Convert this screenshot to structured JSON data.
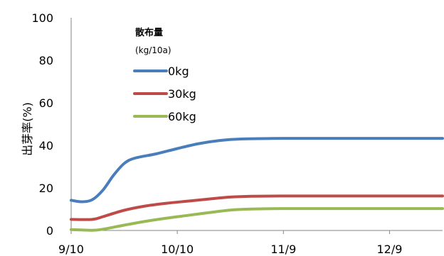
{
  "chart_data": {
    "type": "line",
    "title": "",
    "xlabel": "",
    "ylabel": "出芽率(%)",
    "ylim": [
      0,
      100
    ],
    "yticks": [
      0,
      20,
      40,
      60,
      80,
      100
    ],
    "x_ticks": [
      {
        "day": 0,
        "label": "9/10"
      },
      {
        "day": 30,
        "label": "10/10"
      },
      {
        "day": 60,
        "label": "11/9"
      },
      {
        "day": 90,
        "label": "12/9"
      }
    ],
    "xlim_days": [
      0,
      105
    ],
    "grid": false,
    "legend": {
      "title": "散布量",
      "subtitle": "(kg/10a)",
      "placement": "upper-left inside plot"
    },
    "series": [
      {
        "name": "0kg",
        "color": "#4a7ebb",
        "points": [
          [
            0,
            14.2
          ],
          [
            3,
            13.5
          ],
          [
            6,
            14.5
          ],
          [
            9,
            19
          ],
          [
            12,
            26
          ],
          [
            15,
            31.5
          ],
          [
            18,
            34
          ],
          [
            24,
            36
          ],
          [
            30,
            38.5
          ],
          [
            36,
            40.8
          ],
          [
            42,
            42.3
          ],
          [
            48,
            43
          ],
          [
            60,
            43.3
          ],
          [
            80,
            43.3
          ],
          [
            105,
            43.3
          ]
        ]
      },
      {
        "name": "30kg",
        "color": "#be4b48",
        "points": [
          [
            0,
            5.2
          ],
          [
            6,
            5.2
          ],
          [
            9,
            6.5
          ],
          [
            15,
            9.5
          ],
          [
            21,
            11.5
          ],
          [
            27,
            12.8
          ],
          [
            33,
            13.8
          ],
          [
            39,
            14.8
          ],
          [
            45,
            15.7
          ],
          [
            51,
            16.1
          ],
          [
            60,
            16.2
          ],
          [
            80,
            16.2
          ],
          [
            105,
            16.2
          ]
        ]
      },
      {
        "name": "60kg",
        "color": "#98b954",
        "points": [
          [
            0,
            0.4
          ],
          [
            6,
            0.1
          ],
          [
            9,
            0.6
          ],
          [
            15,
            2.5
          ],
          [
            21,
            4.3
          ],
          [
            27,
            5.8
          ],
          [
            33,
            7.1
          ],
          [
            39,
            8.4
          ],
          [
            45,
            9.6
          ],
          [
            51,
            10.1
          ],
          [
            60,
            10.3
          ],
          [
            80,
            10.3
          ],
          [
            105,
            10.3
          ]
        ]
      }
    ]
  }
}
